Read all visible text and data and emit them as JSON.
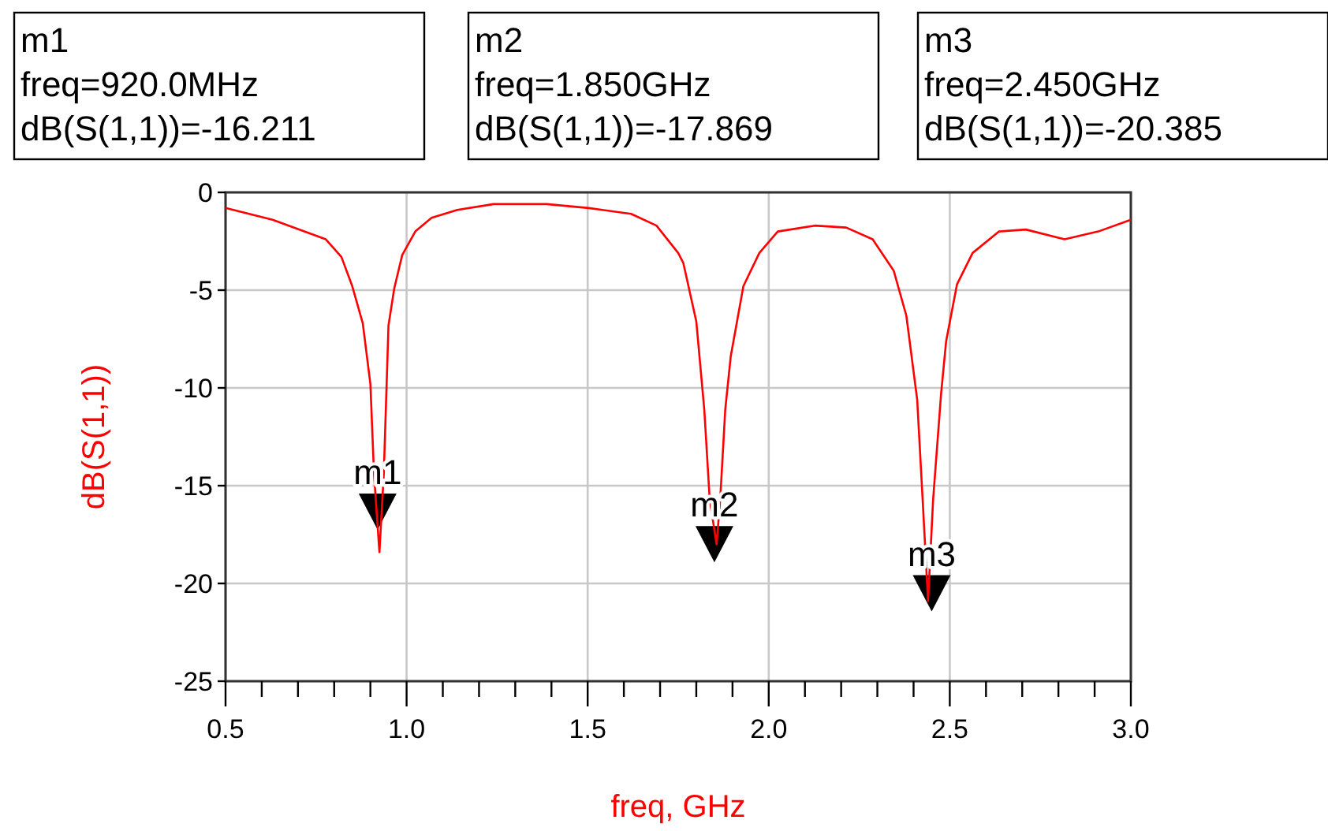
{
  "chart_data": {
    "type": "line",
    "xlabel": "freq, GHz",
    "ylabel": "dB(S(1,1))",
    "xlim": [
      0.5,
      3.0
    ],
    "ylim": [
      -25,
      0
    ],
    "xticks": [
      {
        "value": 0.5,
        "label": "0.5"
      },
      {
        "value": 0.6,
        "label": null
      },
      {
        "value": 0.7,
        "label": null
      },
      {
        "value": 0.8,
        "label": null
      },
      {
        "value": 0.9,
        "label": null
      },
      {
        "value": 1,
        "label": "1.0"
      },
      {
        "value": 1.1,
        "label": null
      },
      {
        "value": 1.2,
        "label": null
      },
      {
        "value": 1.3,
        "label": null
      },
      {
        "value": 1.4,
        "label": null
      },
      {
        "value": 1.5,
        "label": "1.5"
      },
      {
        "value": 1.6,
        "label": null
      },
      {
        "value": 1.7,
        "label": null
      },
      {
        "value": 1.8,
        "label": null
      },
      {
        "value": 1.9,
        "label": null
      },
      {
        "value": 2,
        "label": "2.0"
      },
      {
        "value": 2.1,
        "label": null
      },
      {
        "value": 2.2,
        "label": null
      },
      {
        "value": 2.3,
        "label": null
      },
      {
        "value": 2.4,
        "label": null
      },
      {
        "value": 2.5,
        "label": "2.5"
      },
      {
        "value": 2.6,
        "label": null
      },
      {
        "value": 2.7,
        "label": null
      },
      {
        "value": 2.8,
        "label": null
      },
      {
        "value": 2.9,
        "label": null
      },
      {
        "value": 3,
        "label": "3.0"
      }
    ],
    "yticks": [
      0,
      -5,
      -10,
      -15,
      -20,
      -25
    ],
    "grid": true,
    "marker": "none",
    "line_style": "solid",
    "series": [
      {
        "color": "#ff0000",
        "x": [
          0.5,
          0.63,
          0.777,
          0.82,
          0.85,
          0.879,
          0.9,
          0.91,
          0.925,
          0.937,
          0.95,
          0.966,
          0.988,
          1.024,
          1.069,
          1.14,
          1.24,
          1.387,
          1.503,
          1.62,
          1.69,
          1.75,
          1.764,
          1.8,
          1.822,
          1.837,
          1.856,
          1.866,
          1.88,
          1.895,
          1.93,
          1.974,
          2.025,
          2.127,
          2.214,
          2.287,
          2.345,
          2.38,
          2.41,
          2.425,
          2.44,
          2.454,
          2.476,
          2.49,
          2.52,
          2.563,
          2.636,
          2.71,
          2.817,
          2.91,
          3.0
        ],
        "values": [
          -0.8,
          -1.4,
          -2.4,
          -3.3,
          -4.8,
          -6.7,
          -9.8,
          -14.4,
          -18.4,
          -14.4,
          -6.8,
          -4.9,
          -3.2,
          -2.0,
          -1.3,
          -0.9,
          -0.6,
          -0.6,
          -0.8,
          -1.1,
          -1.7,
          -3.1,
          -3.6,
          -6.6,
          -11.1,
          -15.7,
          -18.0,
          -15.7,
          -11.1,
          -8.4,
          -4.8,
          -3.1,
          -2.0,
          -1.7,
          -1.8,
          -2.4,
          -4.0,
          -6.3,
          -10.6,
          -15.7,
          -20.9,
          -15.7,
          -10.3,
          -7.6,
          -4.7,
          -3.1,
          -2.0,
          -1.9,
          -2.4,
          -2.0,
          -1.4
        ]
      }
    ],
    "annotations": [
      "m1\nfreq=920.0MHz\ndB(S(1,1))=-16.211",
      "m2\nfreq=1.850GHz\ndB(S(1,1))=-17.869",
      "m3\nfreq=2.450GHz\ndB(S(1,1))=-20.385",
      {
        "text": "m1",
        "x": 0.92,
        "y": -16.211
      },
      {
        "text": "m2",
        "x": 1.85,
        "y": -17.869
      },
      {
        "text": "m3",
        "x": 2.45,
        "y": -20.385
      }
    ]
  }
}
